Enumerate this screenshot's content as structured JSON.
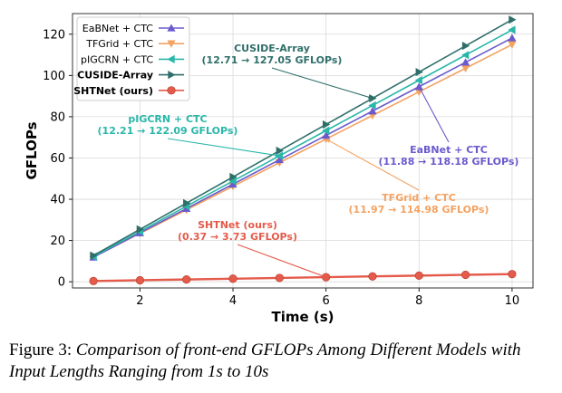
{
  "chart_data": {
    "type": "line",
    "xlabel": "Time (s)",
    "ylabel": "GFLOPs",
    "x": [
      1,
      2,
      3,
      4,
      5,
      6,
      7,
      8,
      9,
      10
    ],
    "xticks": [
      2,
      4,
      6,
      8,
      10
    ],
    "yticks": [
      0,
      20,
      40,
      60,
      80,
      100,
      120
    ],
    "xlim": [
      0.55,
      10.45
    ],
    "ylim": [
      -3,
      130
    ],
    "legend_position": "top-left",
    "series": [
      {
        "name": "EaBNet + CTC",
        "color": "#6a5acd",
        "marker": "triangle-up",
        "values": [
          11.88,
          23.69,
          35.5,
          47.31,
          59.12,
          70.94,
          82.75,
          94.56,
          106.37,
          118.18
        ],
        "annotation": {
          "title": "EaBNet + CTC",
          "detail": "(11.88 → 118.18 GFLOPs)"
        }
      },
      {
        "name": "TFGrid + CTC",
        "color": "#f4a261",
        "marker": "triangle-down",
        "values": [
          11.97,
          23.41,
          34.85,
          46.29,
          57.73,
          69.18,
          80.62,
          92.06,
          103.5,
          114.98
        ],
        "annotation": {
          "title": "TFGrid + CTC",
          "detail": "(11.97 → 114.98 GFLOPs)"
        }
      },
      {
        "name": "pIGCRN + CTC",
        "color": "#2ab7a9",
        "marker": "triangle-left",
        "values": [
          12.21,
          24.42,
          36.63,
          48.84,
          61.05,
          73.26,
          85.47,
          97.68,
          109.88,
          122.09
        ],
        "annotation": {
          "title": "pIGCRN + CTC",
          "detail": "(12.21 → 122.09 GFLOPs)"
        }
      },
      {
        "name": "CUSIDE-Array",
        "color": "#2f6f6a",
        "marker": "triangle-right",
        "values": [
          12.71,
          25.41,
          38.12,
          50.82,
          63.53,
          76.24,
          88.94,
          101.65,
          114.35,
          127.05
        ],
        "annotation": {
          "title": "CUSIDE-Array",
          "detail": "(12.71 → 127.05 GFLOPs)"
        }
      },
      {
        "name": "SHTNet (ours)",
        "color": "#e45b4b",
        "marker": "circle",
        "values": [
          0.37,
          0.74,
          1.12,
          1.49,
          1.86,
          2.24,
          2.61,
          2.98,
          3.36,
          3.73
        ],
        "annotation": {
          "title": "SHTNet (ours)",
          "detail": "(0.37 → 3.73 GFLOPs)"
        }
      }
    ]
  },
  "caption": {
    "label": "Figure 3:",
    "text": "Comparison of front-end GFLOPs Among Different Models with Input Lengths Ranging from 1s to 10s"
  }
}
